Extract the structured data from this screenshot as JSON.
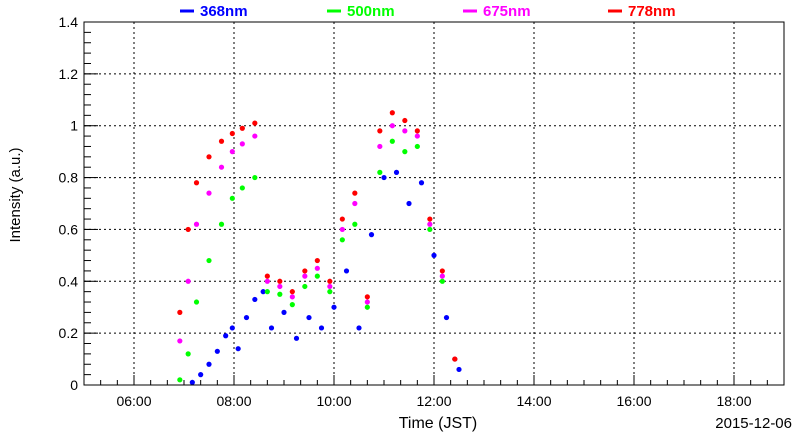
{
  "chart_data": {
    "type": "scatter",
    "title": "",
    "xlabel": "Time (JST)",
    "ylabel": "Intensity (a.u.)",
    "date_label": "2015-12-06",
    "xlim": [
      "05:00",
      "19:00"
    ],
    "ylim": [
      0,
      1.4
    ],
    "grid": true,
    "legend_position": "top",
    "x_ticks": [
      "06:00",
      "08:00",
      "10:00",
      "12:00",
      "14:00",
      "16:00",
      "18:00"
    ],
    "y_ticks": [
      "0",
      "0.2",
      "0.4",
      "0.6",
      "0.8",
      "1",
      "1.2",
      "1.4"
    ],
    "series": [
      {
        "name": "368nm",
        "color": "#0000ff",
        "points": [
          [
            "07:10",
            0.01
          ],
          [
            "07:20",
            0.04
          ],
          [
            "07:30",
            0.08
          ],
          [
            "07:40",
            0.13
          ],
          [
            "07:50",
            0.19
          ],
          [
            "07:58",
            0.22
          ],
          [
            "08:05",
            0.14
          ],
          [
            "08:15",
            0.26
          ],
          [
            "08:25",
            0.33
          ],
          [
            "08:35",
            0.36
          ],
          [
            "08:45",
            0.22
          ],
          [
            "09:00",
            0.28
          ],
          [
            "09:15",
            0.18
          ],
          [
            "09:30",
            0.26
          ],
          [
            "09:45",
            0.22
          ],
          [
            "10:00",
            0.3
          ],
          [
            "10:15",
            0.44
          ],
          [
            "10:30",
            0.22
          ],
          [
            "10:45",
            0.58
          ],
          [
            "11:00",
            0.8
          ],
          [
            "11:15",
            0.82
          ],
          [
            "11:30",
            0.7
          ],
          [
            "11:45",
            0.78
          ],
          [
            "12:00",
            0.5
          ],
          [
            "12:15",
            0.26
          ],
          [
            "12:30",
            0.06
          ]
        ]
      },
      {
        "name": "500nm",
        "color": "#00ff00",
        "points": [
          [
            "06:55",
            0.02
          ],
          [
            "07:05",
            0.12
          ],
          [
            "07:15",
            0.32
          ],
          [
            "07:30",
            0.48
          ],
          [
            "07:45",
            0.62
          ],
          [
            "07:58",
            0.72
          ],
          [
            "08:10",
            0.76
          ],
          [
            "08:25",
            0.8
          ],
          [
            "08:40",
            0.36
          ],
          [
            "08:55",
            0.35
          ],
          [
            "09:10",
            0.31
          ],
          [
            "09:25",
            0.38
          ],
          [
            "09:40",
            0.42
          ],
          [
            "09:55",
            0.36
          ],
          [
            "10:10",
            0.56
          ],
          [
            "10:25",
            0.62
          ],
          [
            "10:40",
            0.3
          ],
          [
            "10:55",
            0.82
          ],
          [
            "11:10",
            0.94
          ],
          [
            "11:25",
            0.9
          ],
          [
            "11:40",
            0.92
          ],
          [
            "11:55",
            0.6
          ],
          [
            "12:10",
            0.4
          ],
          [
            "12:25",
            0.1
          ]
        ]
      },
      {
        "name": "675nm",
        "color": "#ff00ff",
        "points": [
          [
            "06:55",
            0.17
          ],
          [
            "07:05",
            0.4
          ],
          [
            "07:15",
            0.62
          ],
          [
            "07:30",
            0.74
          ],
          [
            "07:45",
            0.84
          ],
          [
            "07:58",
            0.9
          ],
          [
            "08:10",
            0.93
          ],
          [
            "08:25",
            0.96
          ],
          [
            "08:40",
            0.4
          ],
          [
            "08:55",
            0.38
          ],
          [
            "09:10",
            0.34
          ],
          [
            "09:25",
            0.42
          ],
          [
            "09:40",
            0.45
          ],
          [
            "09:55",
            0.38
          ],
          [
            "10:10",
            0.6
          ],
          [
            "10:25",
            0.7
          ],
          [
            "10:40",
            0.32
          ],
          [
            "10:55",
            0.92
          ],
          [
            "11:10",
            1.0
          ],
          [
            "11:25",
            0.98
          ],
          [
            "11:40",
            0.96
          ],
          [
            "11:55",
            0.62
          ],
          [
            "12:10",
            0.42
          ],
          [
            "12:25",
            0.1
          ]
        ]
      },
      {
        "name": "778nm",
        "color": "#ff0000",
        "points": [
          [
            "06:55",
            0.28
          ],
          [
            "07:05",
            0.6
          ],
          [
            "07:15",
            0.78
          ],
          [
            "07:30",
            0.88
          ],
          [
            "07:45",
            0.94
          ],
          [
            "07:58",
            0.97
          ],
          [
            "08:10",
            0.99
          ],
          [
            "08:25",
            1.01
          ],
          [
            "08:40",
            0.42
          ],
          [
            "08:55",
            0.4
          ],
          [
            "09:10",
            0.36
          ],
          [
            "09:25",
            0.44
          ],
          [
            "09:40",
            0.48
          ],
          [
            "09:55",
            0.4
          ],
          [
            "10:10",
            0.64
          ],
          [
            "10:25",
            0.74
          ],
          [
            "10:40",
            0.34
          ],
          [
            "10:55",
            0.98
          ],
          [
            "11:10",
            1.05
          ],
          [
            "11:25",
            1.02
          ],
          [
            "11:40",
            0.98
          ],
          [
            "11:55",
            0.64
          ],
          [
            "12:10",
            0.44
          ],
          [
            "12:25",
            0.1
          ]
        ]
      }
    ]
  }
}
